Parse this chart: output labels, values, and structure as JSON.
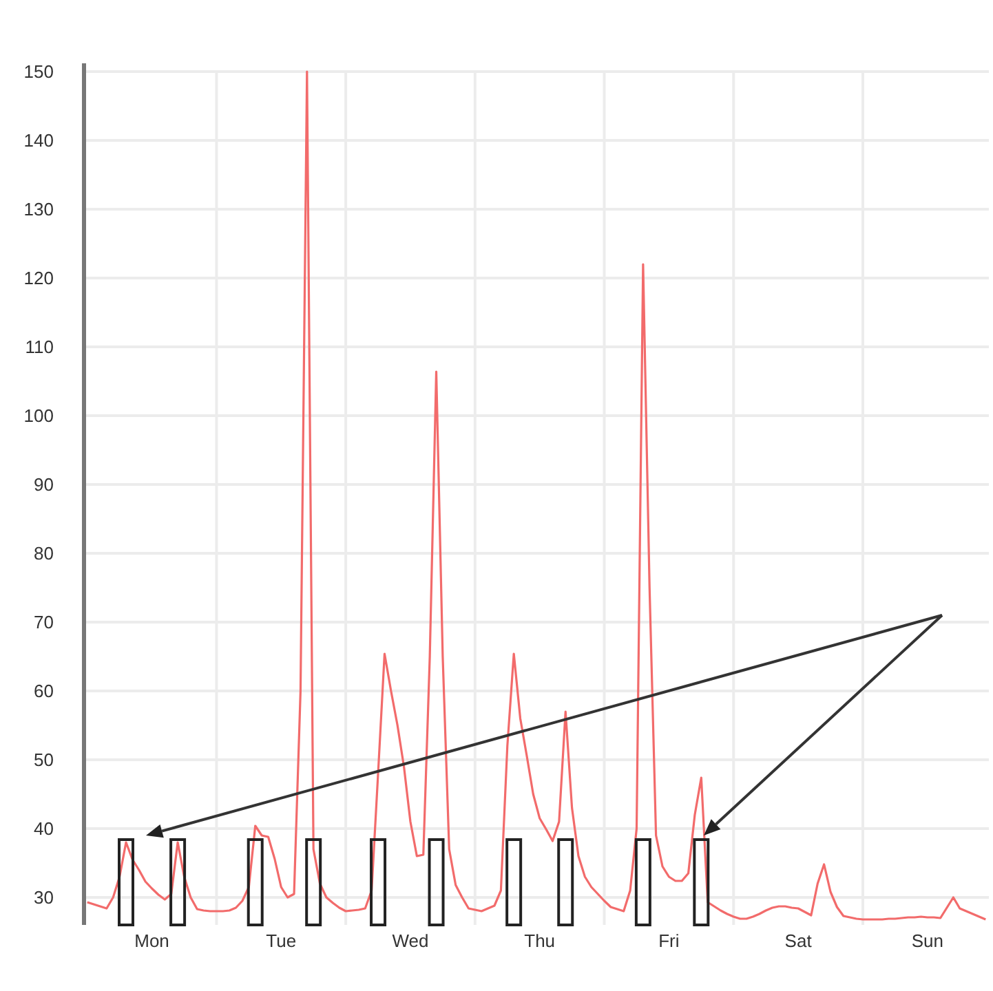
{
  "chart_data": {
    "type": "line",
    "ylim": [
      26,
      150
    ],
    "categories": [
      null,
      null,
      null,
      null,
      null,
      null,
      null,
      null,
      null,
      null,
      "Mon",
      null,
      null,
      null,
      null,
      null,
      null,
      null,
      null,
      null,
      null,
      null,
      null,
      null,
      null,
      null,
      null,
      null,
      null,
      null,
      "Tue",
      null,
      null,
      null,
      null,
      null,
      null,
      null,
      null,
      null,
      null,
      null,
      null,
      null,
      null,
      null,
      null,
      null,
      null,
      null,
      "Wed",
      null,
      null,
      null,
      null,
      null,
      null,
      null,
      null,
      null,
      null,
      null,
      null,
      null,
      null,
      null,
      null,
      null,
      null,
      null,
      "Thu",
      null,
      null,
      null,
      null,
      null,
      null,
      null,
      null,
      null,
      null,
      null,
      null,
      null,
      null,
      null,
      null,
      null,
      null,
      null,
      "Fri",
      null,
      null,
      null,
      null,
      null,
      null,
      null,
      null,
      null,
      null,
      null,
      null,
      null,
      null,
      null,
      null,
      null,
      null,
      null,
      "Sat",
      null,
      null,
      null,
      null,
      null,
      null,
      null,
      null,
      null,
      null,
      null,
      null,
      null,
      null,
      null,
      null,
      null,
      null,
      null,
      "Sun",
      null,
      null,
      null,
      null,
      null,
      null,
      null,
      null,
      null
    ],
    "yticks": [
      30,
      40,
      50,
      60,
      70,
      80,
      90,
      100,
      110,
      120,
      130,
      140,
      150
    ],
    "grid": true,
    "series": [
      {
        "color": "#f26b6b",
        "values": [
          29.3,
          29,
          28.7,
          28.4,
          30,
          33,
          38,
          35.5,
          34,
          32.3,
          31.3,
          30.4,
          29.7,
          30.5,
          38,
          33,
          30,
          28.3,
          28.1,
          28,
          28,
          28,
          28.1,
          28.5,
          29.5,
          31.5,
          40.4,
          39,
          38.8,
          35.6,
          31.5,
          30,
          30.5,
          60,
          150,
          37,
          32,
          30,
          29.2,
          28.5,
          28,
          28.1,
          28.2,
          28.4,
          31,
          48,
          65.4,
          60,
          55,
          49,
          41,
          36,
          36.2,
          65,
          106.4,
          65,
          37,
          31.8,
          30,
          28.4,
          28.2,
          28,
          28.4,
          28.8,
          31,
          52,
          65.4,
          56,
          50.6,
          45,
          41.5,
          39.9,
          38.2,
          41,
          57,
          43,
          36,
          33,
          31.5,
          30.5,
          29.5,
          28.6,
          28.3,
          28,
          31,
          40,
          122,
          75,
          39,
          34.5,
          33,
          32.4,
          32.4,
          33.5,
          42,
          47.4,
          29.3,
          28.7,
          28.1,
          27.6,
          27.2,
          26.9,
          26.9,
          27.2,
          27.6,
          28.1,
          28.5,
          28.7,
          28.7,
          28.5,
          28.4,
          27.9,
          27.4,
          32,
          34.8,
          30.8,
          28.6,
          27.3,
          27.1,
          26.9,
          26.8,
          26.8,
          26.8,
          26.8,
          26.9,
          26.9,
          27,
          27.1,
          27.1,
          27.2,
          27.1,
          27.1,
          27,
          28.5,
          30,
          28.4,
          28,
          27.6,
          27.2,
          26.8
        ]
      },
      {
        "type": "bar",
        "color": "#222222",
        "values": [
          null,
          null,
          null,
          null,
          null,
          null,
          38.4,
          null,
          null,
          null,
          null,
          null,
          null,
          null,
          38.4,
          null,
          null,
          null,
          null,
          null,
          null,
          null,
          null,
          null,
          null,
          null,
          38.4,
          null,
          null,
          null,
          null,
          null,
          null,
          null,
          null,
          38.4,
          null,
          null,
          null,
          null,
          null,
          null,
          null,
          null,
          null,
          38.4,
          null,
          null,
          null,
          null,
          null,
          null,
          null,
          null,
          38.4,
          null,
          null,
          null,
          null,
          null,
          null,
          null,
          null,
          null,
          null,
          null,
          38.4,
          null,
          null,
          null,
          null,
          null,
          null,
          null,
          38.4,
          null,
          null,
          null,
          null,
          null,
          null,
          null,
          null,
          null,
          null,
          null,
          38.4,
          null,
          null,
          null,
          null,
          null,
          null,
          null,
          null,
          38.4,
          null,
          null,
          null,
          null,
          null,
          null,
          null,
          null,
          null,
          null,
          null,
          null,
          null,
          null,
          null,
          null,
          null,
          null,
          null,
          null,
          null,
          null,
          null,
          null,
          null,
          null,
          null,
          null,
          null,
          null,
          null,
          null,
          null,
          null,
          null,
          null,
          null,
          null,
          null,
          null,
          null,
          null,
          null,
          null
        ]
      }
    ]
  }
}
